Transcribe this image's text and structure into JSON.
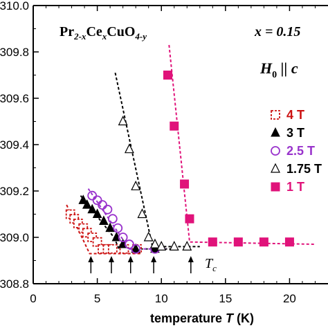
{
  "chart_data": {
    "type": "scatter",
    "title": "",
    "xlabel": "temperature T (K)",
    "ylabel": "",
    "xlim": [
      0,
      23
    ],
    "ylim": [
      308.8,
      310.0
    ],
    "x_ticks": [
      0,
      5,
      10,
      15,
      20
    ],
    "x_tick_labels": [
      "0",
      "5",
      "10",
      "15",
      "20"
    ],
    "y_ticks": [
      308.8,
      309.0,
      309.2,
      309.4,
      309.6,
      309.8,
      310.0
    ],
    "y_tick_labels": [
      "308.8",
      "309.0",
      "309.2",
      "309.4",
      "309.6",
      "309.8",
      "310.0"
    ],
    "grid": false,
    "legend_position": "right",
    "annotations": {
      "compound": "Pr2-xCexCuO4-y",
      "doping": "x = 0.15",
      "field_orientation": "H0 || c",
      "tc_label": "Tc"
    },
    "tc_arrows_x": [
      4.5,
      6.1,
      7.6,
      9.4,
      12.3
    ],
    "series": [
      {
        "name": "4 T",
        "color": "#cc1111",
        "marker": "square-open-dashed",
        "x": [
          2.9,
          3.2,
          3.5,
          3.9,
          4.2,
          4.6,
          5.0,
          5.4,
          5.8,
          6.2,
          7.1,
          8.1
        ],
        "y": [
          309.1,
          309.08,
          309.06,
          309.04,
          309.02,
          309.0,
          308.98,
          308.95,
          308.95,
          308.95,
          308.95,
          308.95
        ],
        "fit": [
          [
            2.6,
            309.14
          ],
          [
            4.4,
            308.93
          ],
          [
            8.4,
            308.93
          ]
        ]
      },
      {
        "name": "3 T",
        "color": "#000000",
        "marker": "triangle-filled",
        "x": [
          3.9,
          4.2,
          4.6,
          5.0,
          5.5,
          6.0,
          6.5,
          7.0,
          8.0,
          9.5
        ],
        "y": [
          309.16,
          309.14,
          309.12,
          309.1,
          309.07,
          309.04,
          309.0,
          308.97,
          308.95,
          308.95
        ],
        "fit": [
          [
            3.7,
            309.18
          ],
          [
            6.3,
            309.0
          ],
          [
            6.7,
            308.95
          ],
          [
            11.0,
            308.95
          ]
        ]
      },
      {
        "name": "2.5 T",
        "color": "#9933cc",
        "marker": "circle-open",
        "x": [
          4.6,
          5.0,
          5.4,
          5.8,
          6.2,
          6.6,
          7.0,
          7.5,
          8.0,
          9.5
        ],
        "y": [
          309.18,
          309.16,
          309.14,
          309.12,
          309.08,
          309.04,
          309.0,
          308.97,
          308.95,
          308.95
        ],
        "fit": [
          [
            4.3,
            309.21
          ],
          [
            7.5,
            308.95
          ],
          [
            10.5,
            308.95
          ]
        ]
      },
      {
        "name": "1.75 T",
        "color": "#000000",
        "marker": "triangle-open",
        "x": [
          7.0,
          7.5,
          8.0,
          8.5,
          9.0,
          9.5,
          10.0,
          11.0,
          12.0
        ],
        "y": [
          309.5,
          309.38,
          309.22,
          309.1,
          309.0,
          308.97,
          308.96,
          308.96,
          308.96
        ],
        "fit": [
          [
            6.4,
            309.71
          ],
          [
            9.3,
            308.96
          ],
          [
            13.0,
            308.96
          ]
        ]
      },
      {
        "name": "1 T",
        "color": "#e0137a",
        "marker": "square-filled",
        "x": [
          10.5,
          11.0,
          11.8,
          12.2,
          14.0,
          16.0,
          18.0,
          20.0
        ],
        "y": [
          309.7,
          309.48,
          309.23,
          309.08,
          308.98,
          308.98,
          308.98,
          308.98
        ],
        "fit": [
          [
            10.6,
            309.83
          ],
          [
            12.2,
            308.98
          ],
          [
            22.0,
            308.97
          ]
        ]
      }
    ]
  },
  "text": {
    "compound_pr": "Pr",
    "compound_sub1": "2-x",
    "compound_ce": "Ce",
    "compound_sub2": "x",
    "compound_cuo": "CuO",
    "compound_sub3": "4-y",
    "doping": "x = 0.15",
    "field_h": "H",
    "field_sub": "0",
    "field_rest": " || c",
    "tc_main": "T",
    "tc_sub": "c",
    "xlabel_pre": "temperature ",
    "xlabel_T": "T",
    "xlabel_post": " (K)"
  }
}
